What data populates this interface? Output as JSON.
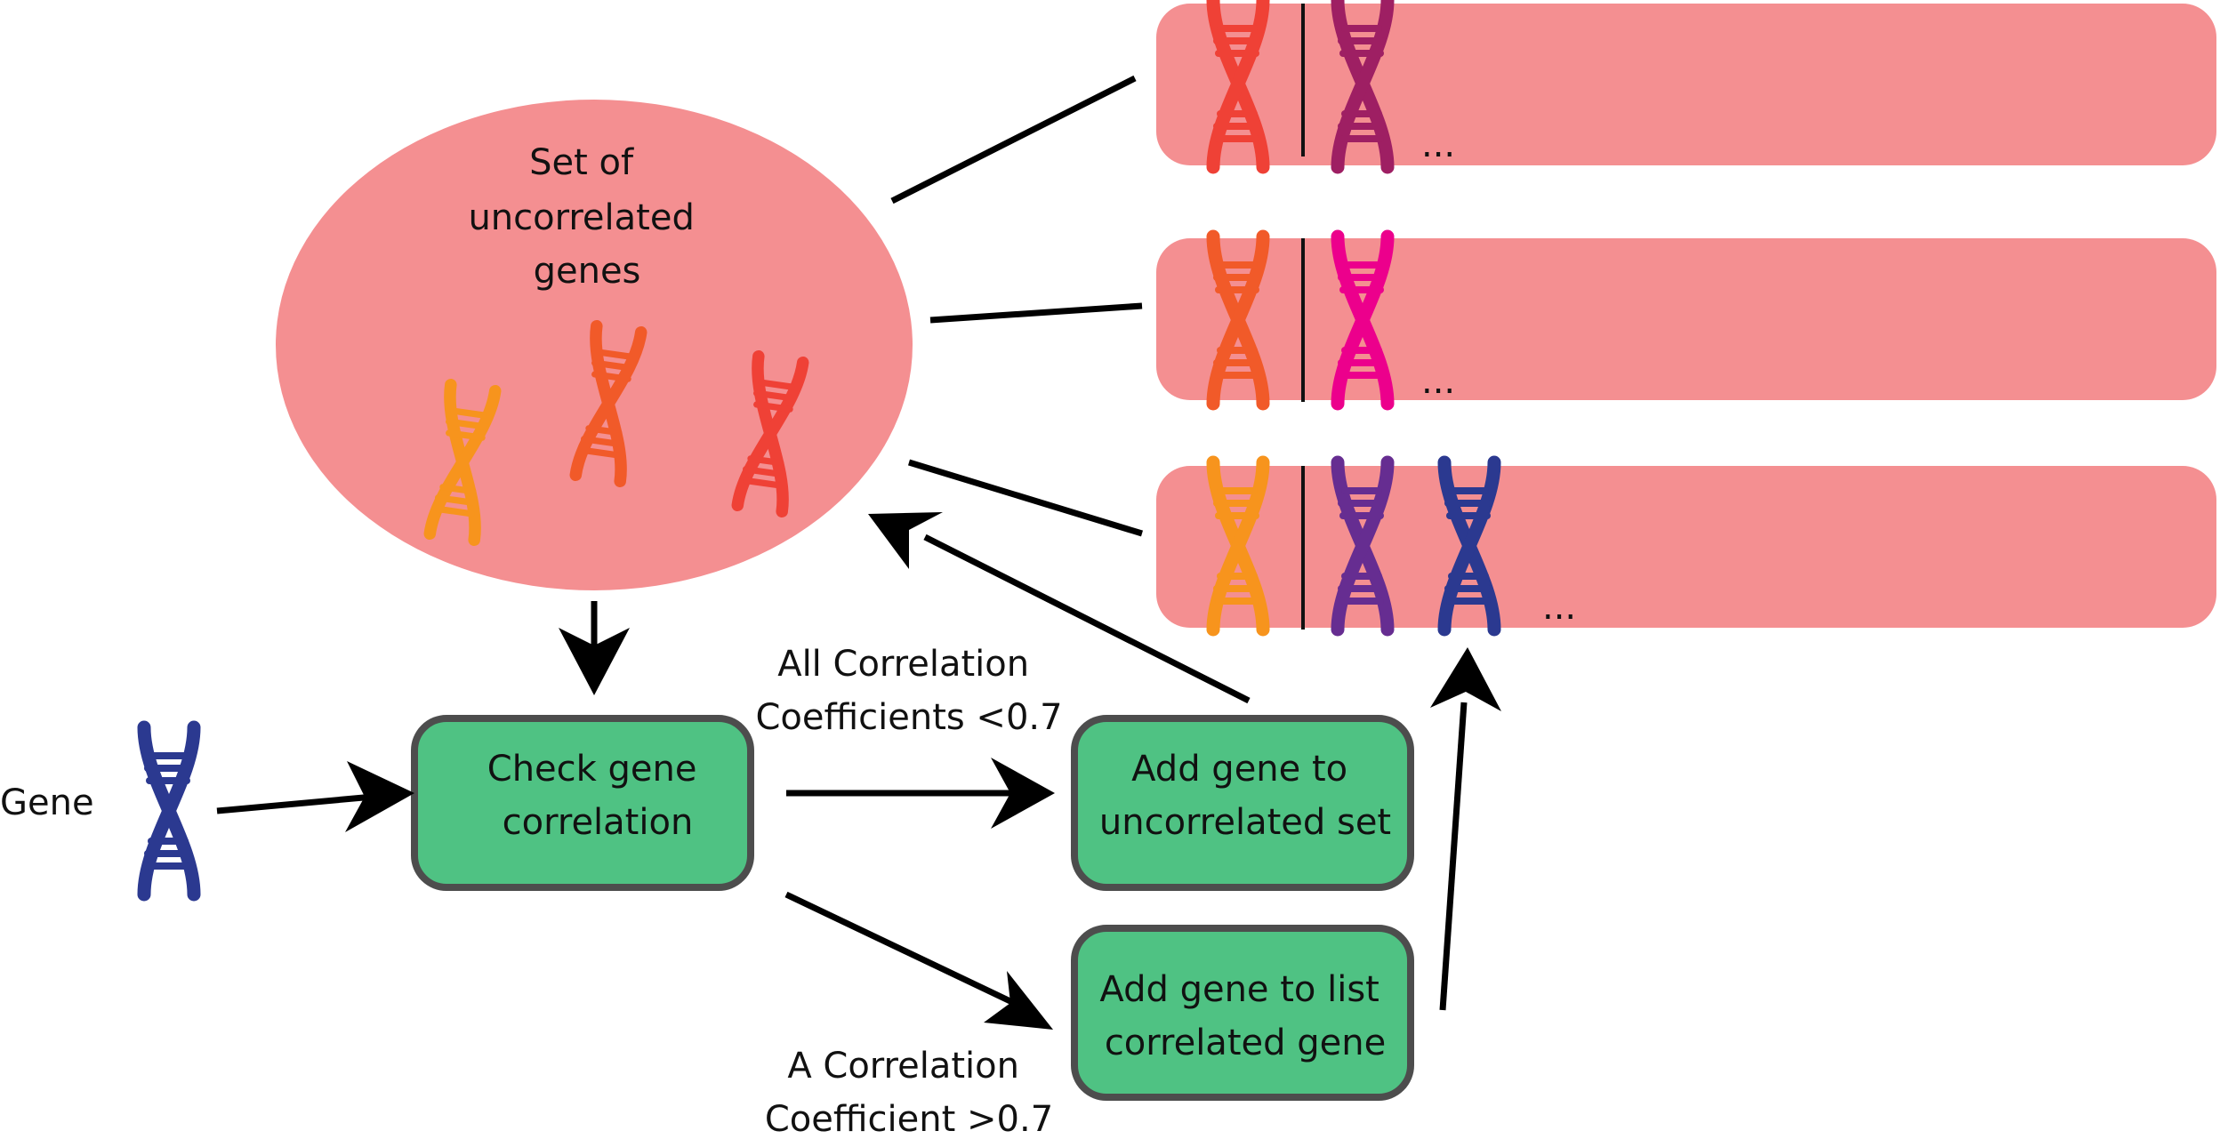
{
  "ellipse": {
    "title_lines": [
      "Set of",
      "uncorrelated",
      "genes"
    ],
    "fill": "#f48f91"
  },
  "gene_label": "Gene",
  "boxes": {
    "check": [
      "Check gene",
      "correlation"
    ],
    "add_uncorrelated": [
      "Add gene to",
      "uncorrelated set"
    ],
    "add_correlated": [
      "Add gene to list",
      "correlated gene"
    ],
    "fill": "#4fc283",
    "stroke": "#4d4d4d"
  },
  "edge_labels": {
    "all_below": [
      "All Correlation",
      "Coefficients <0.7"
    ],
    "one_above": [
      "A Correlation",
      "Coefficient >0.7"
    ]
  },
  "lists": {
    "ellipsis": "...",
    "fill": "#f48f91"
  },
  "colors": {
    "orange": "#f7941d",
    "orange_red": "#f15a29",
    "red": "#ef4136",
    "maroon": "#9e1f63",
    "magenta": "#ec008c",
    "purple": "#662d91",
    "blue": "#2b3990"
  }
}
